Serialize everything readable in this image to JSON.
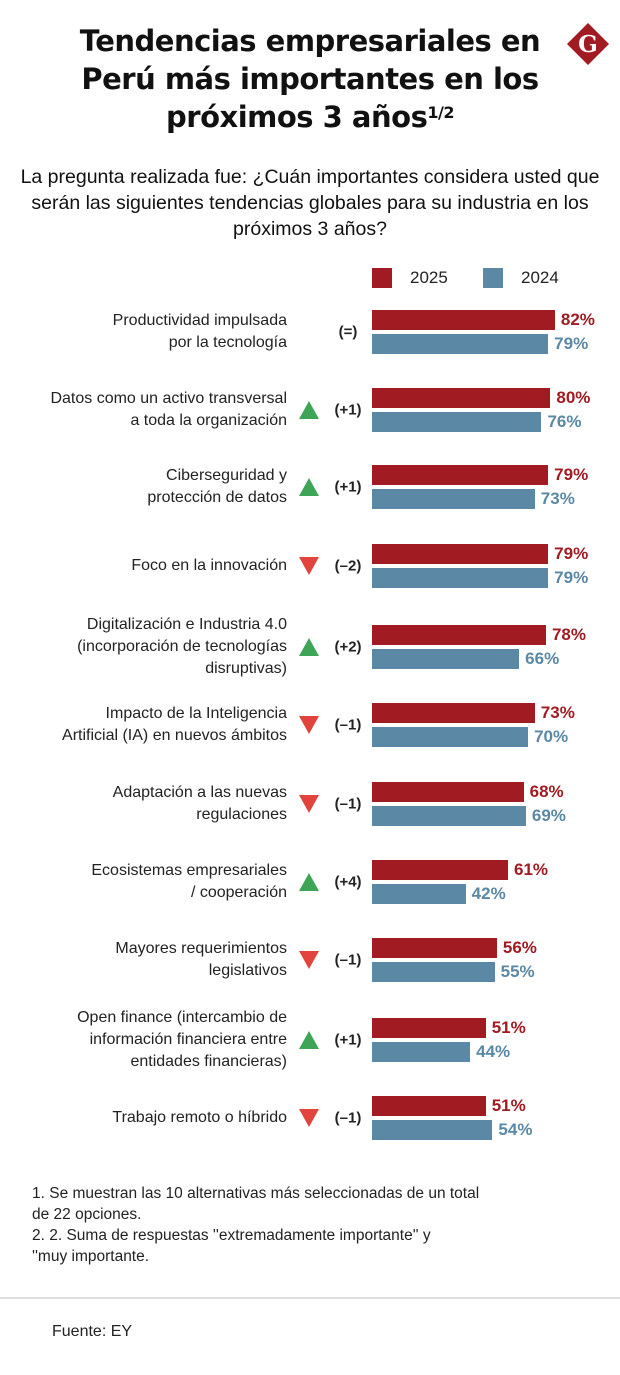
{
  "title": "Tendencias empresariales en Perú más importantes en los próximos 3 años",
  "title_sup": "1/2",
  "logo_text": "G",
  "subtitle": "La pregunta realizada fue: ¿Cuán importantes considera usted que serán las siguientes tendencias globales para su industria en los próximos 3 años?",
  "colors": {
    "2025": "#a11b23",
    "2024": "#5a88a5",
    "up": "#3fa556",
    "down": "#e0443c"
  },
  "chart_data": {
    "type": "bar",
    "orientation": "horizontal",
    "xlim": [
      0,
      100
    ],
    "unit": "%",
    "legend": "top-right",
    "categories": [
      "Productividad impulsada\npor la tecnología",
      "Datos como un activo transversal\na toda la organización",
      "Ciberseguridad y\nprotección de datos",
      "Foco en la innovación",
      "Digitalización e Industria 4.0\n(incorporación de tecnologías\ndisruptivas)",
      "Impacto de la Inteligencia\nArtificial (IA) en nuevos ámbitos",
      "Adaptación a las nuevas\nregulaciones",
      "Ecosistemas empresariales\n/ cooperación",
      "Mayores requerimientos\nlegislativos",
      "Open finance (intercambio de\ninformación financiera entre\nentidades financieras)",
      "Trabajo remoto o híbrido"
    ],
    "series": [
      {
        "name": "2025",
        "values": [
          82,
          80,
          79,
          79,
          78,
          73,
          68,
          61,
          56,
          51,
          51
        ]
      },
      {
        "name": "2024",
        "values": [
          79,
          76,
          73,
          79,
          66,
          70,
          69,
          42,
          55,
          44,
          54
        ]
      }
    ],
    "rank_change": [
      "(=)",
      "(+1)",
      "(+1)",
      "(–2)",
      "(+2)",
      "(–1)",
      "(–1)",
      "(+4)",
      "(–1)",
      "(+1)",
      "(–1)"
    ],
    "rank_direction": [
      "none",
      "up",
      "up",
      "down",
      "up",
      "down",
      "down",
      "up",
      "down",
      "up",
      "down"
    ]
  },
  "notes": "1. Se muestran las 10 alternativas más seleccionadas de un total\nde 22 opciones.\n2. 2. Suma de respuestas ''extremadamente importante'' y\n''muy importante.",
  "source": "Fuente: EY"
}
